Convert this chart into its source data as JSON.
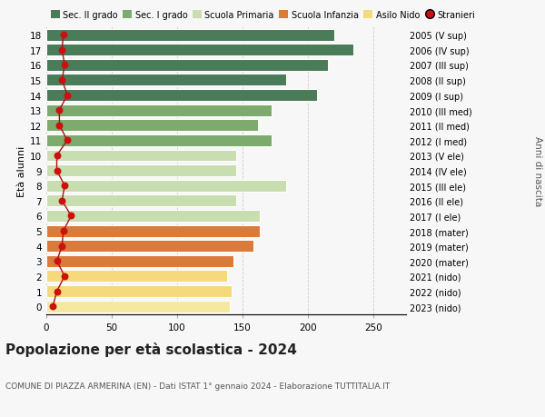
{
  "ages": [
    18,
    17,
    16,
    15,
    14,
    13,
    12,
    11,
    10,
    9,
    8,
    7,
    6,
    5,
    4,
    3,
    2,
    1,
    0
  ],
  "years": [
    "2005 (V sup)",
    "2006 (IV sup)",
    "2007 (III sup)",
    "2008 (II sup)",
    "2009 (I sup)",
    "2010 (III med)",
    "2011 (II med)",
    "2012 (I med)",
    "2013 (V ele)",
    "2014 (IV ele)",
    "2015 (III ele)",
    "2016 (II ele)",
    "2017 (I ele)",
    "2018 (mater)",
    "2019 (mater)",
    "2020 (mater)",
    "2021 (nido)",
    "2022 (nido)",
    "2023 (nido)"
  ],
  "bar_values": [
    220,
    235,
    215,
    183,
    207,
    172,
    162,
    172,
    145,
    145,
    183,
    145,
    163,
    163,
    158,
    143,
    138,
    142,
    140
  ],
  "stranieri": [
    13,
    12,
    14,
    12,
    16,
    10,
    10,
    16,
    8,
    8,
    14,
    12,
    19,
    13,
    12,
    8,
    14,
    8,
    5
  ],
  "bar_colors": [
    "#4a7c59",
    "#4a7c59",
    "#4a7c59",
    "#4a7c59",
    "#4a7c59",
    "#7dab6e",
    "#7dab6e",
    "#7dab6e",
    "#c8ddb0",
    "#c8ddb0",
    "#c8ddb0",
    "#c8ddb0",
    "#c8ddb0",
    "#d97b3a",
    "#d97b3a",
    "#d97b3a",
    "#f5d97a",
    "#f5d97a",
    "#f5e8a0"
  ],
  "legend_labels": [
    "Sec. II grado",
    "Sec. I grado",
    "Scuola Primaria",
    "Scuola Infanzia",
    "Asilo Nido",
    "Stranieri"
  ],
  "legend_colors": [
    "#4a7c59",
    "#7dab6e",
    "#c8ddb0",
    "#d97b3a",
    "#f5d97a",
    "#cc1010"
  ],
  "title": "Popolazione per età scolastica - 2024",
  "subtitle": "COMUNE DI PIAZZA ARMERINA (EN) - Dati ISTAT 1° gennaio 2024 - Elaborazione TUTTITALIA.IT",
  "ylabel": "Età alunni",
  "right_ylabel": "Anni di nascita",
  "xlim": [
    0,
    275
  ],
  "xticks": [
    0,
    50,
    100,
    150,
    200,
    250
  ],
  "bg_color": "#f7f7f7",
  "grid_color": "#cccccc",
  "stranieri_color": "#cc1010",
  "stranieri_line_color": "#aa1010"
}
